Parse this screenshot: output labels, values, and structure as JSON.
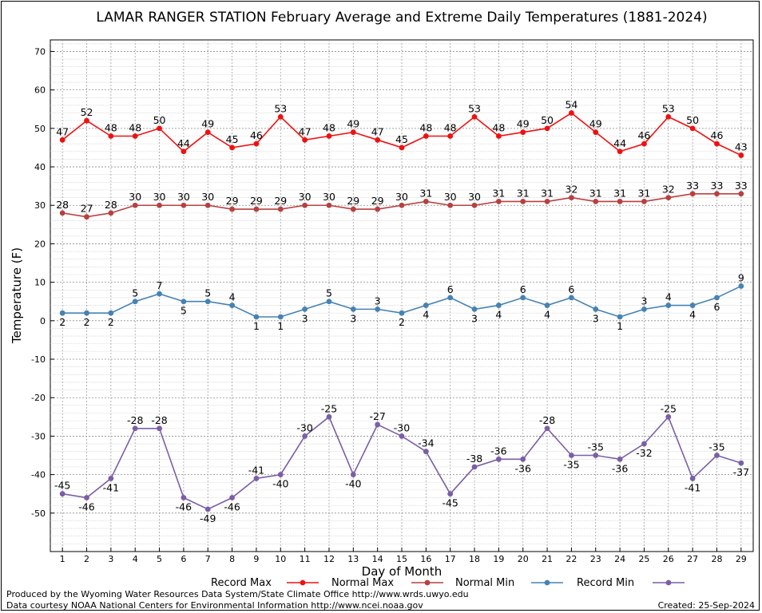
{
  "chart_data": {
    "type": "line",
    "title": "LAMAR RANGER STATION February Average and Extreme Daily Temperatures (1881-2024)",
    "xlabel": "Day of Month",
    "ylabel": "Temperature (F)",
    "x": [
      1,
      2,
      3,
      4,
      5,
      6,
      7,
      8,
      9,
      10,
      11,
      12,
      13,
      14,
      15,
      16,
      17,
      18,
      19,
      20,
      21,
      22,
      23,
      24,
      25,
      26,
      27,
      28,
      29
    ],
    "xlim": [
      0.5,
      29.5
    ],
    "ylim": [
      -60,
      73
    ],
    "yticks": [
      -50,
      -40,
      -30,
      -20,
      -10,
      0,
      10,
      20,
      30,
      40,
      50,
      60,
      70
    ],
    "grid": true,
    "legend_position": "bottom",
    "series": [
      {
        "name": "Record Max",
        "color": "#ee1111",
        "label_pos": "above",
        "values": [
          47,
          52,
          48,
          48,
          50,
          44,
          49,
          45,
          46,
          53,
          47,
          48,
          49,
          47,
          45,
          48,
          48,
          53,
          48,
          49,
          50,
          54,
          49,
          44,
          46,
          53,
          50,
          46,
          43
        ]
      },
      {
        "name": "Normal Max",
        "color": "#b94040",
        "label_pos": "above",
        "values": [
          28,
          27,
          28,
          30,
          30,
          30,
          30,
          29,
          29,
          29,
          30,
          30,
          29,
          29,
          30,
          31,
          30,
          30,
          31,
          31,
          31,
          32,
          31,
          31,
          31,
          32,
          33,
          33,
          33
        ]
      },
      {
        "name": "Normal Min",
        "color": "#4682b4",
        "label_pos": "mixed",
        "values": [
          2,
          2,
          2,
          5,
          7,
          5,
          5,
          4,
          1,
          1,
          3,
          5,
          3,
          3,
          2,
          4,
          6,
          3,
          4,
          6,
          4,
          6,
          3,
          1,
          3,
          4,
          4,
          6,
          9
        ]
      },
      {
        "name": "Record Min",
        "color": "#7b5ea7",
        "label_pos": "mixed",
        "values": [
          -45,
          -46,
          -41,
          -28,
          -28,
          -46,
          -49,
          -46,
          -41,
          -40,
          -30,
          -25,
          -40,
          -27,
          -30,
          -34,
          -45,
          -38,
          -36,
          -36,
          -28,
          -35,
          -35,
          -36,
          -32,
          -25,
          -41,
          -35,
          -37
        ]
      }
    ]
  },
  "footer": {
    "produced_by": "Produced by the Wyoming Water Resources Data System/State Climate Office http://www.wrds.uwyo.edu",
    "courtesy": "Data courtesy NOAA National Centers for Environmental Information http://www.ncei.noaa.gov",
    "created": "Created:  25-Sep-2024"
  }
}
